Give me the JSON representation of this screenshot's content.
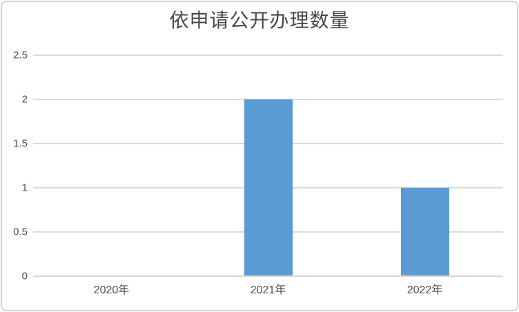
{
  "chart_data": {
    "type": "bar",
    "title": "依申请公开办理数量",
    "categories": [
      "2020年",
      "2021年",
      "2022年"
    ],
    "values": [
      0,
      2,
      1
    ],
    "xlabel": "",
    "ylabel": "",
    "ylim": [
      0,
      2.5
    ],
    "yticks": [
      0,
      0.5,
      1,
      1.5,
      2,
      2.5
    ],
    "ytick_labels": [
      "0",
      "0.5",
      "1",
      "1.5",
      "2",
      "2.5"
    ],
    "grid": true,
    "legend": false,
    "bar_color": "#5B9BD5",
    "gridline_color": "#DADADA",
    "axis_line_color": "#D5D5D5",
    "text_color": "#4D4D4D",
    "title_color": "#484848",
    "frame_color": "#D3D3D3",
    "background_color": "#FFFFFF"
  }
}
